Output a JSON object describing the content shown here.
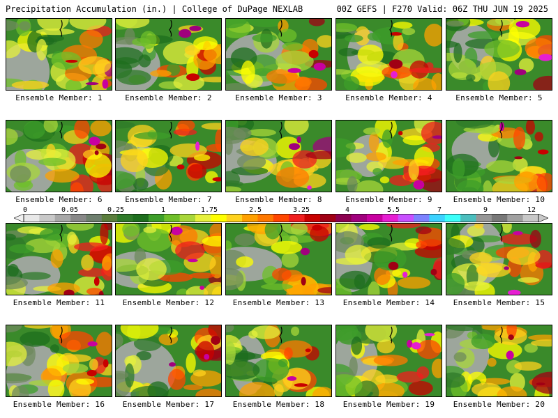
{
  "header": {
    "left_text": "Precipitation Accumulation (in.) | College of DuPage NEXLAB",
    "right_text": "00Z GEFS | F270 Valid: 06Z THU JUN 19 2025"
  },
  "colorbar": {
    "tick_labels": [
      "0",
      "0.05",
      "0.25",
      "1",
      "1.75",
      "2.5",
      "3.25",
      "4",
      "5.5",
      "7",
      "9",
      "12"
    ],
    "colors": [
      "#e8e8e8",
      "#c8c8c8",
      "#a8a8a8",
      "#888888",
      "#6e7f6e",
      "#5a7d3c",
      "#2f7a2a",
      "#1e6e1e",
      "#3d9e2a",
      "#6fbf2a",
      "#a8d63a",
      "#e6f03c",
      "#ffff00",
      "#ffd21e",
      "#ffa000",
      "#ff7800",
      "#ff4600",
      "#f01e1e",
      "#c80000",
      "#a00014",
      "#8c0050",
      "#a0007d",
      "#c800a0",
      "#e61ed2",
      "#c850ff",
      "#7d82ff",
      "#3cd2ff",
      "#3cfffa",
      "#4bbebe",
      "#969696",
      "#787878",
      "#a0a0a0",
      "#c8c8c8"
    ]
  },
  "panels": [
    {
      "label": "Ensemble Member: 1"
    },
    {
      "label": "Ensemble Member: 2"
    },
    {
      "label": "Ensemble Member: 3"
    },
    {
      "label": "Ensemble Member: 4"
    },
    {
      "label": "Ensemble Member: 5"
    },
    {
      "label": "Ensemble Member: 6"
    },
    {
      "label": "Ensemble Member: 7"
    },
    {
      "label": "Ensemble Member: 8"
    },
    {
      "label": "Ensemble Member: 9"
    },
    {
      "label": "Ensemble Member: 10"
    },
    {
      "label": "Ensemble Member: 11"
    },
    {
      "label": "Ensemble Member: 12"
    },
    {
      "label": "Ensemble Member: 13"
    },
    {
      "label": "Ensemble Member: 14"
    },
    {
      "label": "Ensemble Member: 15"
    },
    {
      "label": "Ensemble Member: 16"
    },
    {
      "label": "Ensemble Member: 17"
    },
    {
      "label": "Ensemble Member: 18"
    },
    {
      "label": "Ensemble Member: 19"
    },
    {
      "label": "Ensemble Member: 20"
    }
  ]
}
